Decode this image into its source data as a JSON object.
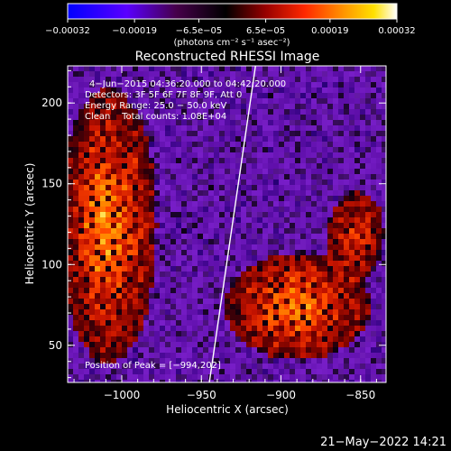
{
  "chart_data": {
    "type": "heatmap",
    "title": "Reconstructed RHESSI Image",
    "xlabel": "Heliocentric X (arcsec)",
    "ylabel": "Heliocentric Y (arcsec)",
    "xlim": [
      -1034,
      -834
    ],
    "ylim": [
      27,
      223
    ],
    "x_ticks": [
      -1000,
      -950,
      -900,
      -850
    ],
    "x_tick_labels": [
      "−1000",
      "−950",
      "−900",
      "−850"
    ],
    "y_ticks": [
      50,
      100,
      150,
      200
    ],
    "y_tick_labels": [
      "50",
      "100",
      "150",
      "200"
    ],
    "colorbar": {
      "range": [
        -0.00032,
        0.00032
      ],
      "ticks": [
        -0.00032,
        -0.00019,
        -6.5e-05,
        6.5e-05,
        0.00019,
        0.00032
      ],
      "tick_labels": [
        "−0.00032",
        "−0.00019",
        "−6.5e−05",
        "6.5e−05",
        "0.00019",
        "0.00032"
      ],
      "unit_label": "(photons cm⁻² s⁻¹ asec⁻²)"
    },
    "annotations": [
      "4−Jun−2015 04:36:20.000 to 04:42:20.000",
      "Detectors: 3F 5F 6F 7F 8F 9F, Att 0",
      "Energy Range: 25.0 − 50.0 keV",
      "Clean    Total counts: 1.08E+04"
    ],
    "peak_label": "Position of Peak = [−994,202]",
    "peak_position": [
      -994,
      202
    ],
    "limb_line": [
      [
        -945,
        27
      ],
      [
        -916,
        223
      ]
    ],
    "grid": false
  },
  "footer": {
    "date": "21−May−2022 14:21"
  },
  "colors": {
    "background": "#000000",
    "foreground": "#ffffff",
    "colormap": [
      "#0000ff",
      "#7a00ff",
      "#3c0032",
      "#000000",
      "#960000",
      "#ff3c00",
      "#ff9600",
      "#ffe000",
      "#ffffff"
    ]
  }
}
